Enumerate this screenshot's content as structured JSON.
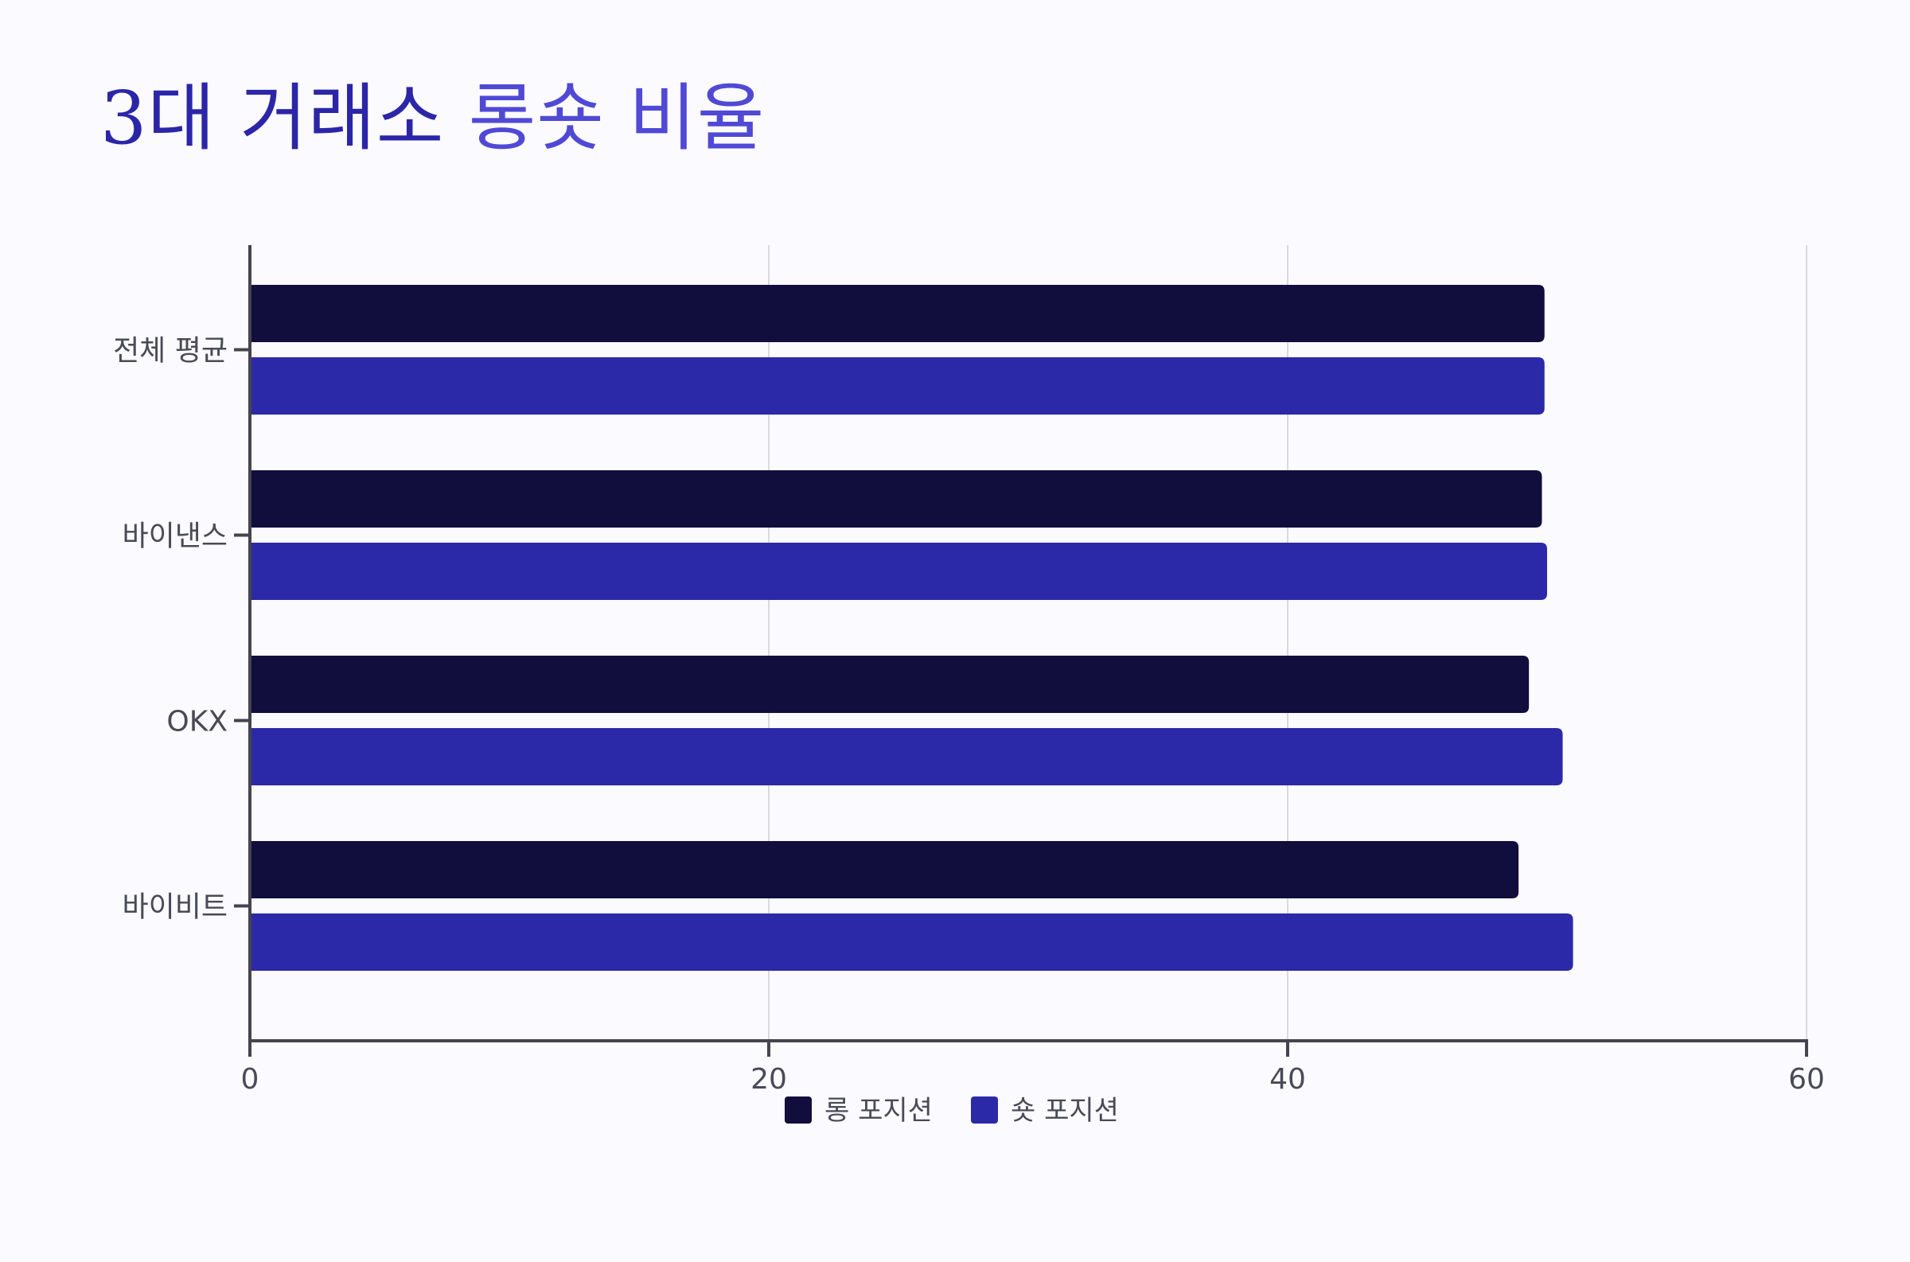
{
  "title_parts": [
    "3대 거래소 ",
    "롱숏 비율"
  ],
  "colors": {
    "title_primary": "#2b26a8",
    "title_accent": "#5049d6",
    "long": "#110e3d",
    "short": "#2c29a8",
    "axis": "#45444f",
    "grid": "#d9d9e0",
    "text": "#4a4a57",
    "background": "#fbfaff"
  },
  "chart_data": {
    "type": "bar",
    "orientation": "horizontal",
    "title": "3대 거래소 롱숏 비율",
    "categories": [
      "전체 평균",
      "바이낸스",
      "OKX",
      "바이비트"
    ],
    "series": [
      {
        "name": "롱 포지션",
        "values": [
          49.9,
          49.8,
          49.3,
          48.9
        ]
      },
      {
        "name": "숏 포지션",
        "values": [
          49.9,
          50.0,
          50.6,
          51.0
        ]
      }
    ],
    "xticks": [
      "0",
      "20",
      "40",
      "60"
    ],
    "xlim": [
      0,
      60
    ],
    "grid": true,
    "legend": "bottom-center"
  }
}
